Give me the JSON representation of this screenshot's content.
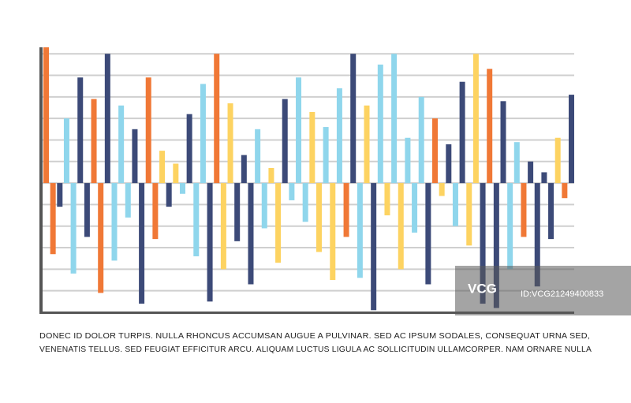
{
  "chart_data": {
    "type": "bar",
    "values": [
      6.3,
      -3.3,
      -1.1,
      3.0,
      -4.2,
      4.9,
      -2.5,
      3.9,
      -5.1,
      6.0,
      -3.6,
      3.6,
      -1.6,
      2.5,
      -5.6,
      4.9,
      -2.6,
      1.5,
      -1.1,
      0.9,
      -0.5,
      3.2,
      -3.4,
      4.6,
      -5.5,
      6.0,
      -4.0,
      3.7,
      -2.7,
      1.3,
      -4.7,
      2.5,
      -2.1,
      0.7,
      -3.7,
      3.9,
      -0.8,
      4.9,
      -1.8,
      3.3,
      -3.2,
      2.6,
      -4.5,
      4.4,
      -2.5,
      6.0,
      -4.4,
      3.6,
      -5.9,
      5.5,
      -1.5,
      6.0,
      -4.0,
      2.1,
      -2.3,
      4.0,
      -4.7,
      3.0,
      -0.6,
      1.8,
      -2.0,
      4.7,
      -2.9,
      6.0,
      -5.6,
      5.3,
      -5.8,
      3.8,
      -4.0,
      1.9,
      -2.5,
      1.0,
      -4.8,
      0.5,
      -2.6,
      2.1,
      -0.7,
      4.1
    ],
    "colors": [
      "#f07836",
      "#f07836",
      "#3c4a78",
      "#8fd6ec",
      "#8fd6ec",
      "#3c4a78",
      "#3c4a78",
      "#f07836",
      "#f07836",
      "#3c4a78",
      "#8fd6ec",
      "#8fd6ec",
      "#8fd6ec",
      "#3c4a78",
      "#3c4a78",
      "#f07836",
      "#f07836",
      "#fdd361",
      "#3c4a78",
      "#fdd361",
      "#8fd6ec",
      "#3c4a78",
      "#8fd6ec",
      "#8fd6ec",
      "#3c4a78",
      "#f07836",
      "#fdd361",
      "#fdd361",
      "#3c4a78",
      "#3c4a78",
      "#3c4a78",
      "#8fd6ec",
      "#8fd6ec",
      "#fdd361",
      "#fdd361",
      "#3c4a78",
      "#8fd6ec",
      "#8fd6ec",
      "#8fd6ec",
      "#fdd361",
      "#fdd361",
      "#8fd6ec",
      "#fdd361",
      "#8fd6ec",
      "#f07836",
      "#3c4a78",
      "#8fd6ec",
      "#fdd361",
      "#3c4a78",
      "#8fd6ec",
      "#fdd361",
      "#8fd6ec",
      "#fdd361",
      "#8fd6ec",
      "#8fd6ec",
      "#8fd6ec",
      "#3c4a78",
      "#f07836",
      "#fdd361",
      "#3c4a78",
      "#8fd6ec",
      "#3c4a78",
      "#fdd361",
      "#fdd361",
      "#3c4a78",
      "#f07836",
      "#3c4a78",
      "#3c4a78",
      "#8fd6ec",
      "#8fd6ec",
      "#f07836",
      "#3c4a78",
      "#3c4a78",
      "#3c4a78",
      "#3c4a78",
      "#fdd361",
      "#f07836",
      "#3c4a78"
    ],
    "ylim": [
      -6,
      6.3
    ],
    "yticks": [
      -5,
      -4,
      -3,
      -2,
      -1,
      0,
      1,
      2,
      3,
      4,
      5,
      6
    ],
    "grid": true,
    "caption_lines": [
      "DONEC ID DOLOR TURPIS. NULLA RHONCUS ACCUMSAN AUGUE A PULVINAR. SED AC IPSUM SODALES, CONSEQUAT URNA SED,",
      "VENENATIS TELLUS. SED FEUGIAT EFFICITUR ARCU. ALIQUAM LUCTUS LIGULA AC SOLLICITUDIN ULLAMCORPER. NAM ORNARE NULLA"
    ],
    "watermark": "VCG",
    "watermark_id": "ID:VCG21249400833"
  }
}
